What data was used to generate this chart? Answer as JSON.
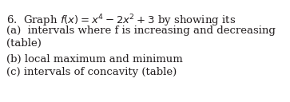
{
  "line1": "6.  Graph $f(x) = x^{4} - 2x^{2} + 3$ by showing its",
  "line2": "(a)  intervals where f is increasing and decreasing",
  "line3": "(table)",
  "line4": "(b) local maximum and minimum",
  "line5": "(c) intervals of concavity (table)",
  "bg_color": "#ffffff",
  "text_color": "#231f20",
  "font_size": 9.5,
  "font_family": "DejaVu Serif"
}
